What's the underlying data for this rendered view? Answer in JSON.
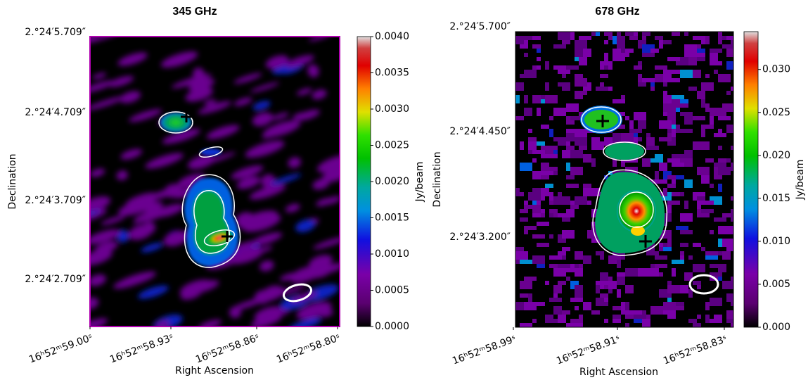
{
  "chart_data": [
    {
      "type": "image",
      "title": "345 GHz",
      "xlabel": "Right Ascension",
      "ylabel": "Declination",
      "xticklabels": [
        "16ʰ52ᵐ59.00ˢ",
        "16ʰ52ᵐ58.93ˢ",
        "16ʰ52ᵐ58.86ˢ",
        "16ʰ52ᵐ58.80ˢ"
      ],
      "yticklabels": [
        "2.°24′5.709″",
        "2.°24′4.709″",
        "2.°24′3.709″",
        "2.°24′2.709″"
      ],
      "colorbar_label": "Jy/beam",
      "clim": [
        0,
        0.004
      ],
      "cticks": [
        {
          "value": 0,
          "label": "0.0000"
        },
        0.0005,
        {
          "value": 0.001,
          "label": "0.0010"
        },
        0.0015,
        {
          "value": 0.002,
          "label": "0.0020"
        },
        0.0025,
        {
          "value": 0.003,
          "label": "0.0030"
        },
        0.0035,
        {
          "value": 0.004,
          "label": "0.0040"
        }
      ]
    },
    {
      "type": "image",
      "title": "678 GHz",
      "xlabel": "Right Ascension",
      "ylabel": "Declination",
      "xticklabels": [
        "16ʰ52ᵐ58.99ˢ",
        "16ʰ52ᵐ58.91ˢ",
        "16ʰ52ᵐ58.83ˢ"
      ],
      "yticklabels": [
        "2.°24′5.700″",
        "2.°24′4.450″",
        "2.°24′3.200″"
      ],
      "colorbar_label": "Jy/beam",
      "clim": [
        0,
        0.0344
      ],
      "cticks": [
        {
          "value": 0,
          "label": "0.000"
        },
        0.005,
        {
          "value": 0.01,
          "label": "0.010"
        },
        0.015,
        {
          "value": 0.02,
          "label": "0.020"
        },
        0.025,
        {
          "value": 0.03,
          "label": "0.030"
        }
      ]
    }
  ]
}
